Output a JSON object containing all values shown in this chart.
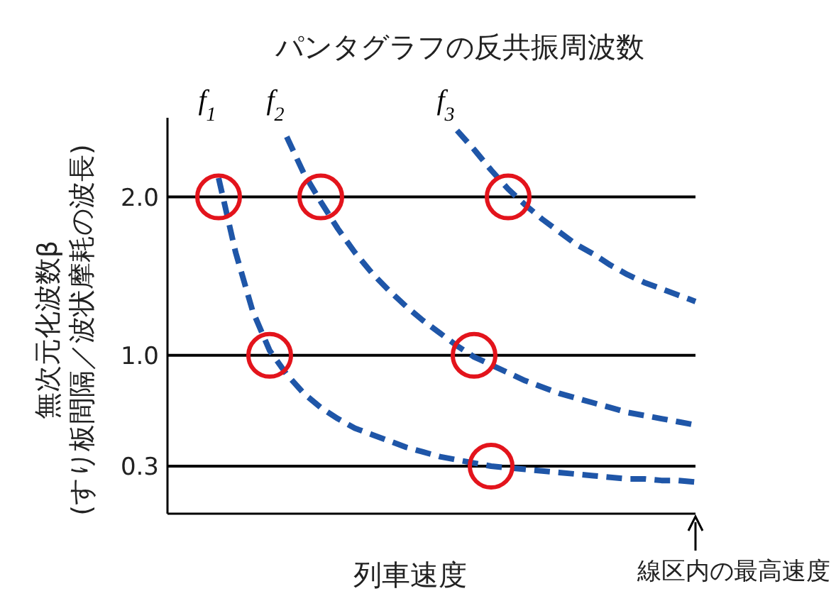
{
  "chart_data": {
    "type": "line",
    "title": "パンタグラフの反共振周波数",
    "xlabel": "列車速度",
    "ylabel": "無次元化波数β\n(すり板間隔／波状摩耗の波長)",
    "annotations": [
      "線区内の最高速度"
    ],
    "categories": [
      null,
      null,
      null,
      null,
      null,
      null,
      null,
      null,
      null,
      null,
      null,
      null,
      null,
      null,
      null,
      null,
      null,
      null,
      null,
      null,
      null,
      null,
      null,
      null,
      null,
      null,
      null,
      null,
      null,
      null,
      null,
      null
    ],
    "series": [
      {
        "name": "f$_{1}$",
        "color": "#1f56a8",
        "line_style": "dashed",
        "values": [
          null,
          null,
          null,
          2.12,
          1.65,
          1.28,
          1.03,
          0.88,
          0.76,
          0.67,
          0.6,
          0.54,
          0.5,
          0.46,
          0.42,
          0.39,
          0.36,
          0.34,
          0.32,
          0.3,
          0.29,
          0.28,
          0.27,
          0.26,
          0.25,
          0.24,
          0.23,
          0.22,
          0.22,
          0.21,
          0.21,
          0.2
        ]
      },
      {
        "name": "f$_{2}$",
        "color": "#1f56a8",
        "line_style": "dashed",
        "values": [
          null,
          null,
          null,
          null,
          null,
          null,
          null,
          2.38,
          2.15,
          1.97,
          1.8,
          1.65,
          1.52,
          1.41,
          1.31,
          1.22,
          1.14,
          1.06,
          0.99,
          0.94,
          0.89,
          0.84,
          0.8,
          0.76,
          0.73,
          0.7,
          0.67,
          0.64,
          0.62,
          0.6,
          0.58,
          0.56
        ]
      },
      {
        "name": "f$_{3}$",
        "color": "#1f56a8",
        "line_style": "dashed",
        "values": [
          null,
          null,
          null,
          null,
          null,
          null,
          null,
          null,
          null,
          null,
          null,
          null,
          null,
          null,
          null,
          null,
          null,
          2.42,
          2.3,
          2.17,
          2.05,
          1.95,
          1.86,
          1.78,
          1.7,
          1.64,
          1.57,
          1.51,
          1.46,
          1.42,
          1.38,
          1.34
        ]
      },
      {
        "type": "scatter",
        "color": "#e3141c",
        "marker": "circle",
        "values": [
          null,
          null,
          null,
          2.0,
          null,
          null,
          1.0,
          null,
          null,
          2.0,
          null,
          null,
          null,
          null,
          null,
          null,
          null,
          null,
          1.0,
          0.3,
          2.0,
          null,
          null,
          null,
          null,
          null,
          null,
          null,
          null,
          null,
          null,
          null
        ]
      }
    ],
    "ylim": [
      0,
      2.5
    ],
    "yticks": [
      0.3,
      {
        "value": 1,
        "label": "1.0"
      },
      {
        "value": 2,
        "label": "2.0"
      }
    ],
    "grid": "y",
    "legend": false,
    "tick_labels": "y"
  }
}
